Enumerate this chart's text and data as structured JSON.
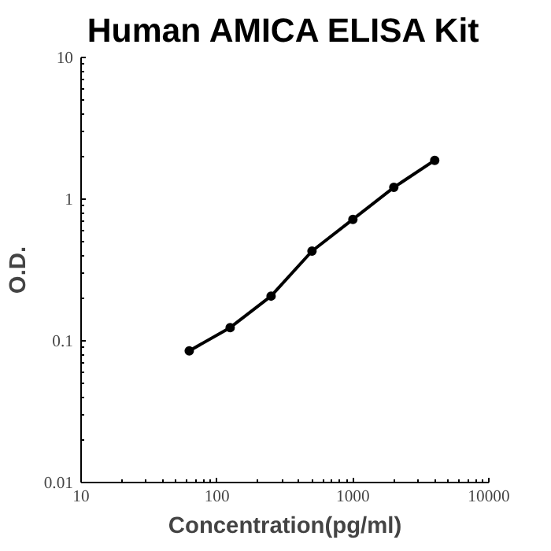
{
  "chart_data": {
    "type": "line",
    "title": "Human AMICA ELISA Kit",
    "xlabel": "Concentration(pg/ml)",
    "ylabel": "O.D.",
    "x": [
      62.5,
      125,
      250,
      500,
      1000,
      2000,
      4000
    ],
    "series": [
      {
        "color": "#000000",
        "values": [
          0.085,
          0.124,
          0.207,
          0.43,
          0.72,
          1.21,
          1.88
        ]
      }
    ],
    "log": "xy",
    "xlim": [
      10,
      10000
    ],
    "ylim": [
      0.01,
      10
    ],
    "xticks": [
      10,
      100,
      1000,
      10000
    ],
    "yticks": [
      0.01,
      0.1,
      1,
      10
    ],
    "grid": false,
    "marker": "circle",
    "line_style": "solid"
  }
}
